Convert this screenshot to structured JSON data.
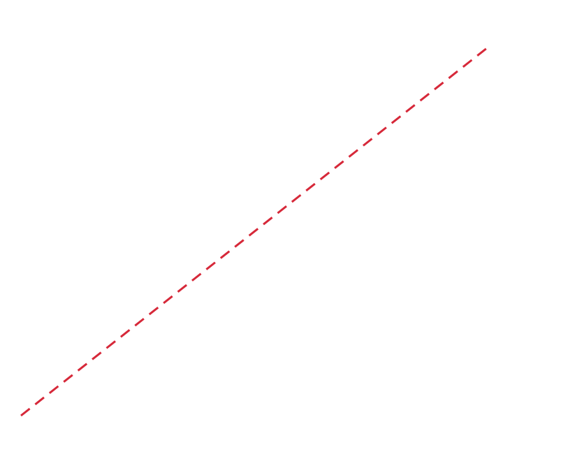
{
  "canvas": {
    "background": "#ffffff"
  },
  "line": {
    "color": "#d62839",
    "style": "dashed"
  }
}
